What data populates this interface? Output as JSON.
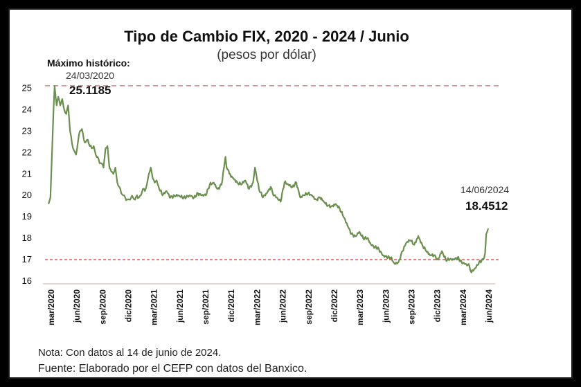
{
  "chart_data": {
    "type": "line",
    "title": "Tipo de Cambio FIX, 2020 - 2024 / Junio",
    "subtitle": "(pesos por dólar)",
    "xlabel": "",
    "ylabel": "",
    "ylim": [
      16,
      25.2
    ],
    "yticks": [
      "16",
      "17",
      "18",
      "19",
      "20",
      "21",
      "22",
      "23",
      "24",
      "25"
    ],
    "xticks": [
      "mar/2020",
      "jun/2020",
      "sep/2020",
      "dic/2020",
      "mar/2021",
      "jun/2021",
      "sep/2021",
      "dic/2021",
      "mar/2022",
      "jun/2022",
      "sep/2022",
      "dic/2022",
      "mar/2023",
      "jun/2023",
      "sep/2023",
      "dic/2023",
      "mar/2024",
      "jun/2024"
    ],
    "grid": false,
    "line_color": "#6b8f4e",
    "reference_lines": [
      {
        "value": 25.1185,
        "color": "#e38a8a",
        "style": "dashed"
      },
      {
        "value": 17.0,
        "color": "#e04040",
        "style": "dashed"
      }
    ],
    "series": [
      {
        "x": [
          "2020-03-02",
          "2020-03-09",
          "2020-03-16",
          "2020-03-20",
          "2020-03-24",
          "2020-03-31",
          "2020-04-06",
          "2020-04-13",
          "2020-04-20",
          "2020-04-27",
          "2020-05-04",
          "2020-05-11",
          "2020-05-18",
          "2020-05-25",
          "2020-06-01",
          "2020-06-08",
          "2020-06-15",
          "2020-06-22",
          "2020-06-29",
          "2020-07-06",
          "2020-07-13",
          "2020-07-20",
          "2020-07-27",
          "2020-08-03",
          "2020-08-10",
          "2020-08-17",
          "2020-08-24",
          "2020-08-31",
          "2020-09-07",
          "2020-09-14",
          "2020-09-21",
          "2020-09-28",
          "2020-10-05",
          "2020-10-12",
          "2020-10-19",
          "2020-10-26",
          "2020-11-02",
          "2020-11-09",
          "2020-11-16",
          "2020-11-23",
          "2020-11-30",
          "2020-12-07",
          "2020-12-14",
          "2020-12-21",
          "2020-12-28",
          "2021-01-04",
          "2021-01-11",
          "2021-01-18",
          "2021-01-25",
          "2021-02-01",
          "2021-02-08",
          "2021-02-15",
          "2021-02-22",
          "2021-03-01",
          "2021-03-08",
          "2021-03-15",
          "2021-03-22",
          "2021-03-29",
          "2021-04-12",
          "2021-04-26",
          "2021-05-10",
          "2021-05-24",
          "2021-06-07",
          "2021-06-21",
          "2021-07-05",
          "2021-07-19",
          "2021-08-02",
          "2021-08-16",
          "2021-08-30",
          "2021-09-13",
          "2021-09-27",
          "2021-10-11",
          "2021-10-25",
          "2021-11-08",
          "2021-11-22",
          "2021-11-26",
          "2021-12-06",
          "2021-12-20",
          "2022-01-03",
          "2022-01-17",
          "2022-01-31",
          "2022-02-14",
          "2022-02-28",
          "2022-03-07",
          "2022-03-21",
          "2022-04-04",
          "2022-04-18",
          "2022-05-02",
          "2022-05-09",
          "2022-05-23",
          "2022-06-06",
          "2022-06-20",
          "2022-07-04",
          "2022-07-18",
          "2022-08-01",
          "2022-08-15",
          "2022-08-29",
          "2022-09-12",
          "2022-09-26",
          "2022-10-10",
          "2022-10-24",
          "2022-11-07",
          "2022-11-21",
          "2022-12-05",
          "2022-12-19",
          "2023-01-02",
          "2023-01-16",
          "2023-01-30",
          "2023-02-13",
          "2023-02-27",
          "2023-03-13",
          "2023-03-27",
          "2023-04-10",
          "2023-04-24",
          "2023-05-08",
          "2023-05-22",
          "2023-06-05",
          "2023-06-19",
          "2023-07-03",
          "2023-07-17",
          "2023-07-31",
          "2023-08-14",
          "2023-08-28",
          "2023-09-11",
          "2023-09-25",
          "2023-10-09",
          "2023-10-23",
          "2023-11-06",
          "2023-11-20",
          "2023-12-04",
          "2023-12-18",
          "2024-01-01",
          "2024-01-15",
          "2024-01-29",
          "2024-02-12",
          "2024-02-26",
          "2024-03-11",
          "2024-03-25",
          "2024-04-08",
          "2024-04-15",
          "2024-04-29",
          "2024-05-13",
          "2024-05-27",
          "2024-06-03",
          "2024-06-07",
          "2024-06-14"
        ],
        "values": [
          19.6,
          19.9,
          22.5,
          24.0,
          25.1,
          24.2,
          24.6,
          24.2,
          24.5,
          24.0,
          23.8,
          24.2,
          23.0,
          22.4,
          22.1,
          21.9,
          22.5,
          23.0,
          23.1,
          22.6,
          22.5,
          22.6,
          22.3,
          22.2,
          22.3,
          21.9,
          21.8,
          21.5,
          21.5,
          21.3,
          22.2,
          22.3,
          21.3,
          21.1,
          21.0,
          21.3,
          20.6,
          20.4,
          20.1,
          20.0,
          19.9,
          19.8,
          19.8,
          19.9,
          19.9,
          19.8,
          20.0,
          19.9,
          20.0,
          20.3,
          20.2,
          20.5,
          21.0,
          21.3,
          20.8,
          20.6,
          20.7,
          20.4,
          20.0,
          20.2,
          19.9,
          20.0,
          20.0,
          19.9,
          19.9,
          20.0,
          19.9,
          20.1,
          20.0,
          20.0,
          20.5,
          20.6,
          20.3,
          20.5,
          21.8,
          21.3,
          21.0,
          20.8,
          20.6,
          20.5,
          20.7,
          20.3,
          20.6,
          21.3,
          20.3,
          19.9,
          20.1,
          20.4,
          20.1,
          19.9,
          19.7,
          20.6,
          20.5,
          20.4,
          20.6,
          19.9,
          20.0,
          20.1,
          20.0,
          19.8,
          19.9,
          19.7,
          19.5,
          19.5,
          19.6,
          19.4,
          19.0,
          18.6,
          18.2,
          18.1,
          18.3,
          18.0,
          18.0,
          17.7,
          17.6,
          17.5,
          17.2,
          17.1,
          17.1,
          16.8,
          16.9,
          17.4,
          17.8,
          17.9,
          17.7,
          18.1,
          17.7,
          17.4,
          17.2,
          17.2,
          17.0,
          17.4,
          17.0,
          17.0,
          17.0,
          17.1,
          16.9,
          16.8,
          16.7,
          16.4,
          16.6,
          16.9,
          17.0,
          17.3,
          18.2,
          18.4512
        ]
      }
    ],
    "annotations": {
      "max_label": "Máximo histórico:",
      "max_date": "24/03/2020",
      "max_value": "25.1185",
      "last_date": "14/06/2024",
      "last_value": "18.4512"
    },
    "footnotes": {
      "note": "Nota: Con datos al 14 de junio de 2024.",
      "source": "Fuente: Elaborado por el CEFP con datos del Banxico."
    }
  }
}
